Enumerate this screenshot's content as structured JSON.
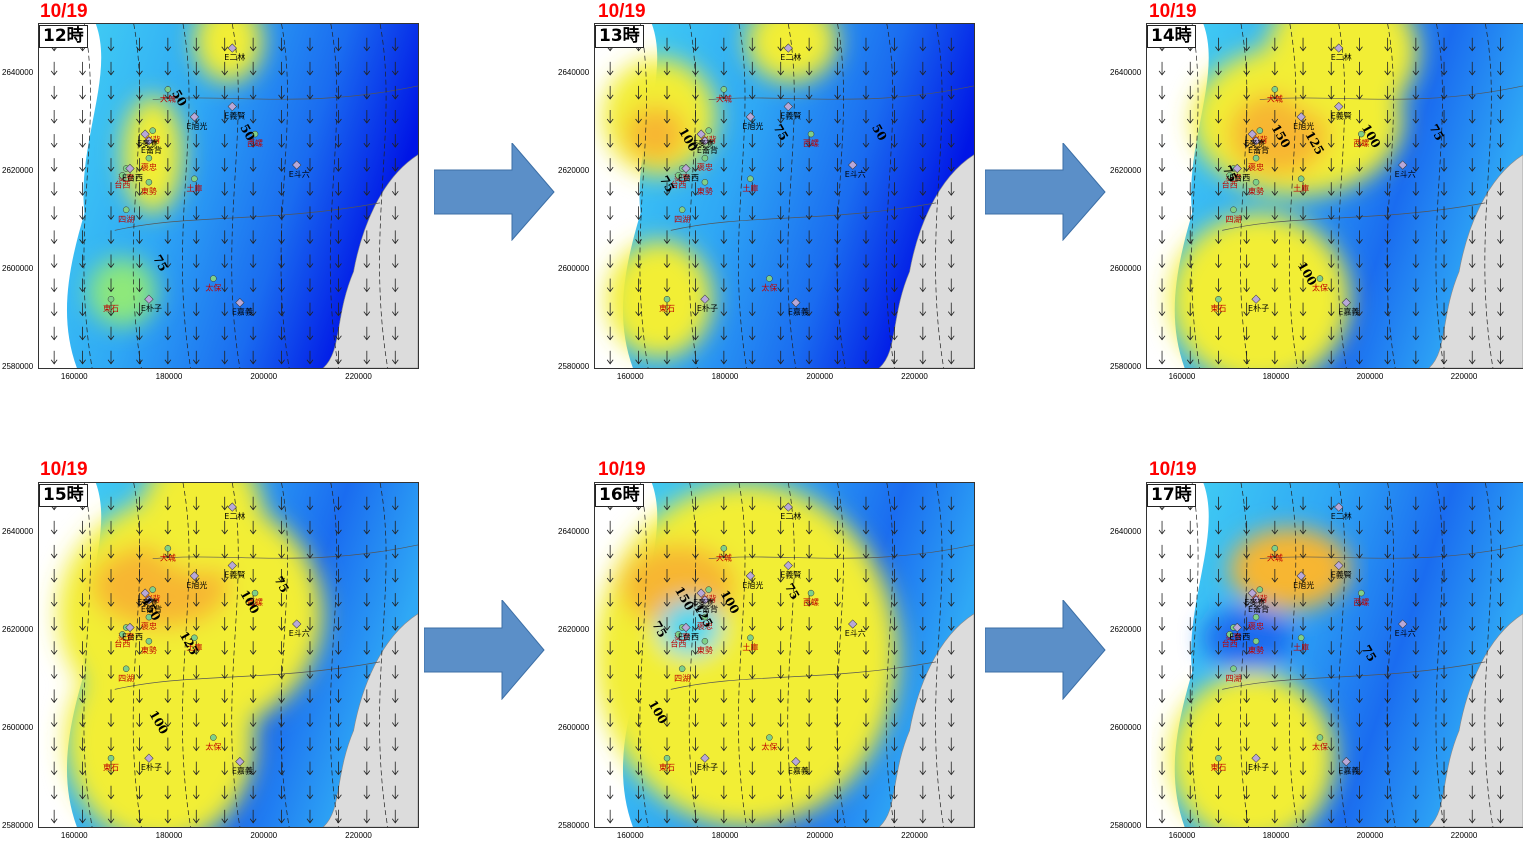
{
  "panels": [
    {
      "date": "10/19",
      "hour": "12時",
      "contours": [
        "75",
        "50",
        "50"
      ]
    },
    {
      "date": "10/19",
      "hour": "13時",
      "contours": [
        "100",
        "75",
        "75",
        "50"
      ]
    },
    {
      "date": "10/19",
      "hour": "14時",
      "contours": [
        "150",
        "125",
        "100",
        "75",
        "75",
        "100"
      ]
    },
    {
      "date": "10/19",
      "hour": "15時",
      "contours": [
        "150",
        "125",
        "100",
        "75",
        "100"
      ]
    },
    {
      "date": "10/19",
      "hour": "16時",
      "contours": [
        "150",
        "125",
        "100",
        "75",
        "75",
        "100"
      ]
    },
    {
      "date": "10/19",
      "hour": "17時",
      "contours": [
        "75"
      ]
    }
  ],
  "axis": {
    "y_ticks": [
      "2640000",
      "2620000",
      "2600000",
      "2580000"
    ],
    "x_ticks": [
      "160000",
      "180000",
      "200000",
      "220000"
    ]
  },
  "stations": [
    "E二林",
    "大城",
    "E義賢",
    "E旭光",
    "西螺",
    "E斗六",
    "崙背",
    "E崙背",
    "麥寮",
    "E麥寮",
    "褒忠",
    "台西",
    "E台西",
    "東勢",
    "土庫",
    "四湖",
    "東石",
    "E朴子",
    "E嘉義",
    "太保"
  ],
  "colors": {
    "date": "#ff0000",
    "arrow": "#5b8fc8",
    "land": "#dcdcdc",
    "deep_blue": "#0015e6",
    "blue": "#1a6cf0",
    "light_blue": "#2fa8f5",
    "cyan": "#46d8f2",
    "green": "#8ee87a",
    "yellow": "#f2ee34",
    "orange": "#f7b630"
  }
}
